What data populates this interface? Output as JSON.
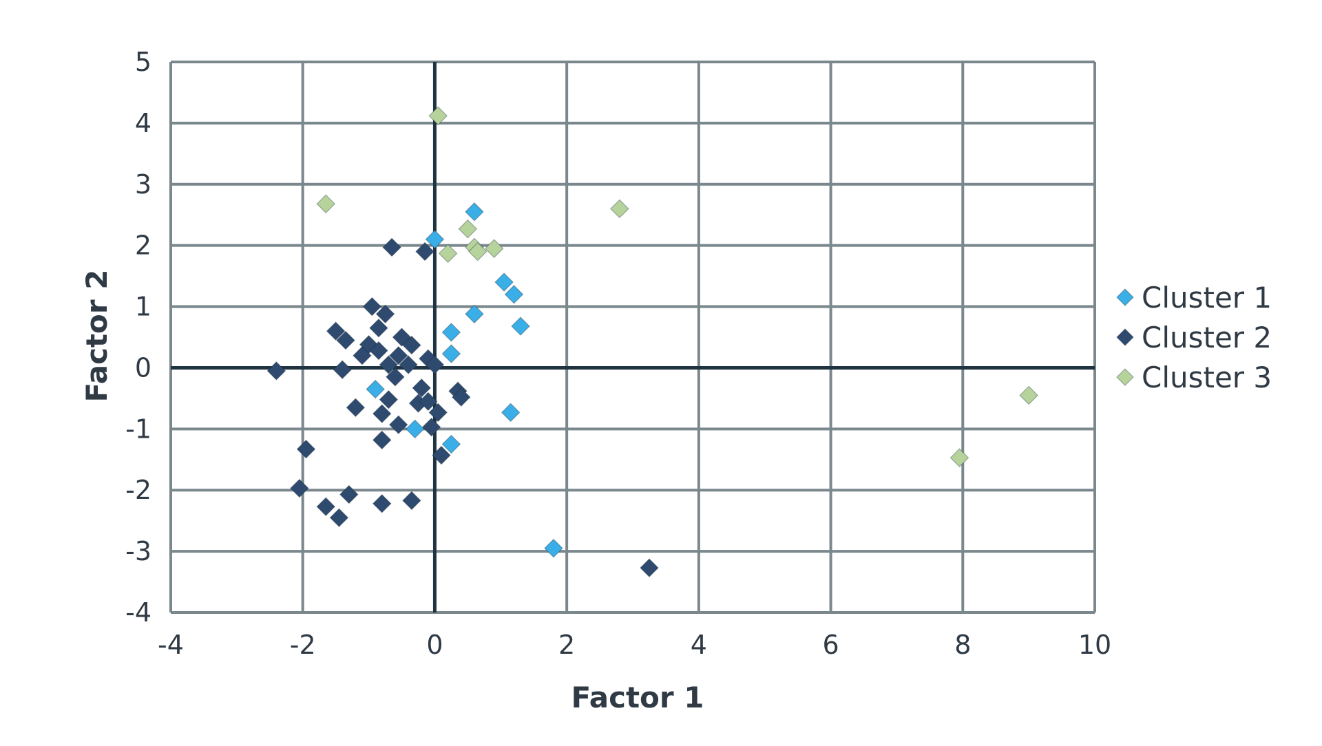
{
  "chart_data": {
    "type": "scatter",
    "title": "",
    "xlabel": "Factor 1",
    "ylabel": "Factor 2",
    "xlim": [
      -4,
      10
    ],
    "ylim": [
      -4,
      5
    ],
    "x_ticks": [
      "-4",
      "-2",
      "0",
      "2",
      "4",
      "6",
      "8",
      "10"
    ],
    "y_ticks": [
      "5",
      "4",
      "3",
      "2",
      "1",
      "0",
      "-1",
      "-2",
      "-3",
      "-4"
    ],
    "grid": true,
    "legend_position": "right",
    "marker": "diamond",
    "series": [
      {
        "name": "Cluster 1",
        "color": "#3aaee6",
        "points": [
          [
            0.6,
            2.55
          ],
          [
            0.0,
            2.1
          ],
          [
            1.05,
            1.4
          ],
          [
            1.2,
            1.2
          ],
          [
            0.6,
            0.88
          ],
          [
            1.3,
            0.68
          ],
          [
            0.25,
            0.58
          ],
          [
            0.25,
            0.23
          ],
          [
            -0.9,
            -0.35
          ],
          [
            -0.3,
            -1.0
          ],
          [
            0.25,
            -1.25
          ],
          [
            1.15,
            -0.73
          ],
          [
            1.8,
            -2.95
          ]
        ]
      },
      {
        "name": "Cluster 2",
        "color": "#2e4a6f",
        "points": [
          [
            -0.65,
            1.97
          ],
          [
            -0.15,
            1.9
          ],
          [
            -0.95,
            1.0
          ],
          [
            -0.75,
            0.88
          ],
          [
            -0.85,
            0.65
          ],
          [
            -1.5,
            0.6
          ],
          [
            -1.35,
            0.45
          ],
          [
            -1.0,
            0.38
          ],
          [
            -0.5,
            0.5
          ],
          [
            -0.85,
            0.28
          ],
          [
            -1.1,
            0.2
          ],
          [
            -0.55,
            0.2
          ],
          [
            -0.35,
            0.37
          ],
          [
            -0.7,
            0.05
          ],
          [
            -0.4,
            0.05
          ],
          [
            -0.1,
            0.15
          ],
          [
            0.0,
            0.05
          ],
          [
            -0.6,
            -0.15
          ],
          [
            -1.4,
            -0.03
          ],
          [
            -2.4,
            -0.05
          ],
          [
            -0.2,
            -0.33
          ],
          [
            -0.7,
            -0.52
          ],
          [
            -0.25,
            -0.58
          ],
          [
            -0.1,
            -0.55
          ],
          [
            0.35,
            -0.38
          ],
          [
            0.4,
            -0.48
          ],
          [
            0.05,
            -0.73
          ],
          [
            -1.2,
            -0.65
          ],
          [
            -0.8,
            -0.75
          ],
          [
            -0.55,
            -0.93
          ],
          [
            -0.05,
            -0.97
          ],
          [
            -0.8,
            -1.18
          ],
          [
            0.1,
            -1.43
          ],
          [
            -1.95,
            -1.33
          ],
          [
            -2.05,
            -1.97
          ],
          [
            -1.3,
            -2.07
          ],
          [
            -1.65,
            -2.27
          ],
          [
            -1.45,
            -2.45
          ],
          [
            -0.8,
            -2.22
          ],
          [
            -0.35,
            -2.17
          ],
          [
            3.25,
            -3.27
          ]
        ]
      },
      {
        "name": "Cluster 3",
        "color": "#b6d39c",
        "points": [
          [
            0.05,
            4.12
          ],
          [
            -1.65,
            2.68
          ],
          [
            2.8,
            2.6
          ],
          [
            0.5,
            2.27
          ],
          [
            0.2,
            1.87
          ],
          [
            0.6,
            1.97
          ],
          [
            0.65,
            1.9
          ],
          [
            0.9,
            1.95
          ],
          [
            9.0,
            -0.45
          ],
          [
            7.95,
            -1.47
          ]
        ]
      }
    ]
  }
}
